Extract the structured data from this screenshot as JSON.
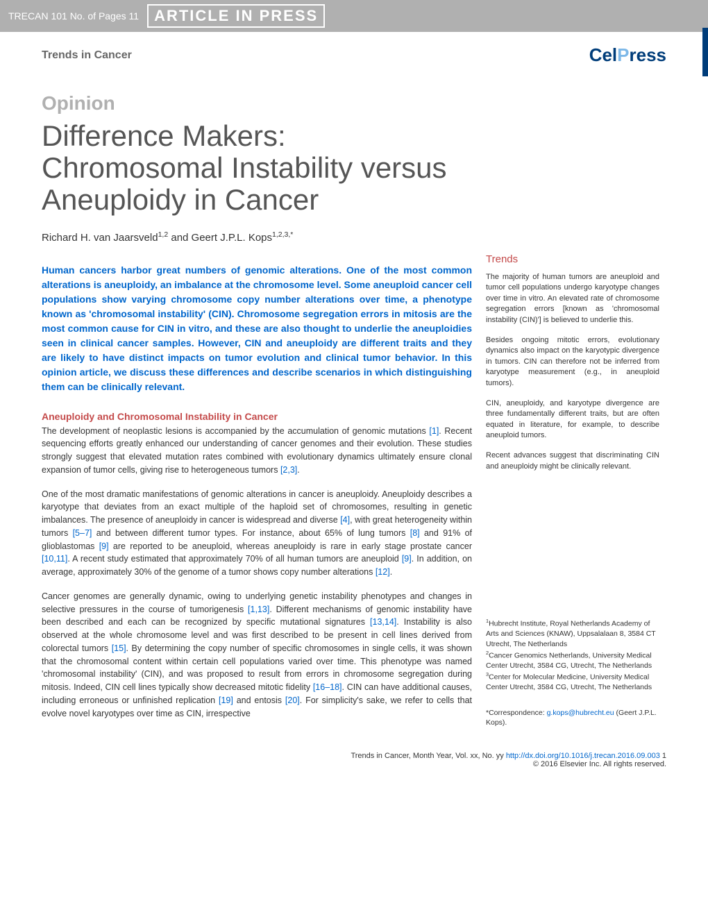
{
  "header": {
    "doc_info": "TRECAN 101 No. of Pages 11",
    "watermark": "ARTICLE IN PRESS"
  },
  "journal": {
    "name": "Trends in Cancer",
    "publisher_cel": "Cel",
    "publisher_p": "P",
    "publisher_ress": "ress"
  },
  "article": {
    "label": "Opinion",
    "title": "Difference Makers: Chromosomal Instability versus Aneuploidy in Cancer",
    "authors": "Richard H. van Jaarsveld",
    "authors_sup1": "1,2",
    "authors_and": " and Geert J.P.L. Kops",
    "authors_sup2": "1,2,3,*"
  },
  "abstract": "Human cancers harbor great numbers of genomic alterations. One of the most common alterations is aneuploidy, an imbalance at the chromosome level. Some aneuploid cancer cell populations show varying chromosome copy number alterations over time, a phenotype known as 'chromosomal instability' (CIN). Chromosome segregation errors in mitosis are the most common cause for CIN in vitro, and these are also thought to underlie the aneuploidies seen in clinical cancer samples. However, CIN and aneuploidy are different traits and they are likely to have distinct impacts on tumor evolution and clinical tumor behavior. In this opinion article, we discuss these differences and describe scenarios in which distinguishing them can be clinically relevant.",
  "section1": {
    "title": "Aneuploidy and Chromosomal Instability in Cancer"
  },
  "para1": {
    "t1": "The development of neoplastic lesions is accompanied by the accumulation of genomic mutations ",
    "c1": "[1]",
    "t2": ". Recent sequencing efforts greatly enhanced our understanding of cancer genomes and their evolution. These studies strongly suggest that elevated mutation rates combined with evolutionary dynamics ultimately ensure clonal expansion of tumor cells, giving rise to heterogeneous tumors ",
    "c2": "[2,3]",
    "t3": "."
  },
  "para2": {
    "t1": "One of the most dramatic manifestations of genomic alterations in cancer is aneuploidy. Aneuploidy describes a karyotype that deviates from an exact multiple of the haploid set of chromosomes, resulting in genetic imbalances. The presence of aneuploidy in cancer is widespread and diverse ",
    "c1": "[4]",
    "t2": ", with great heterogeneity within tumors ",
    "c2": "[5–7]",
    "t3": " and between different tumor types. For instance, about 65% of lung tumors ",
    "c3": "[8]",
    "t4": " and 91% of glioblastomas ",
    "c4": "[9]",
    "t5": " are reported to be aneuploid, whereas aneuploidy is rare in early stage prostate cancer ",
    "c5": "[10,11]",
    "t6": ". A recent study estimated that approximately 70% of all human tumors are aneuploid ",
    "c6": "[9]",
    "t7": ". In addition, on average, approximately 30% of the genome of a tumor shows copy number alterations ",
    "c7": "[12]",
    "t8": "."
  },
  "para3": {
    "t1": "Cancer genomes are generally dynamic, owing to underlying genetic instability phenotypes and changes in selective pressures in the course of tumorigenesis ",
    "c1": "[1,13]",
    "t2": ". Different mechanisms of genomic instability have been described and each can be recognized by specific mutational signatures ",
    "c2": "[13,14]",
    "t3": ". Instability is also observed at the whole chromosome level and was first described to be present in cell lines derived from colorectal tumors ",
    "c3": "[15]",
    "t4": ". By determining the copy number of specific chromosomes in single cells, it was shown that the chromosomal content within certain cell populations varied over time. This phenotype was named 'chromosomal instability' (CIN), and was proposed to result from errors in chromosome segregation during mitosis. Indeed, CIN cell lines typically show decreased mitotic fidelity ",
    "c4": "[16–18]",
    "t5": ". CIN can have additional causes, including erroneous or unfinished replication ",
    "c5": "[19]",
    "t6": " and entosis ",
    "c6": "[20]",
    "t7": ". For simplicity's sake, we refer to cells that evolve novel karyotypes over time as CIN, irrespective"
  },
  "trends": {
    "title": "Trends",
    "p1": "The majority of human tumors are aneuploid and tumor cell populations undergo karyotype changes over time in vitro. An elevated rate of chromosome segregation errors [known as 'chromosomal instability (CIN)'] is believed to underlie this.",
    "p2": "Besides ongoing mitotic errors, evolutionary dynamics also impact on the karyotypic divergence in tumors. CIN can therefore not be inferred from karyotype measurement (e.g., in aneuploid tumors).",
    "p3": "CIN, aneuploidy, and karyotype divergence are three fundamentally different traits, but are often equated in literature, for example, to describe aneuploid tumors.",
    "p4": "Recent advances suggest that discriminating CIN and aneuploidy might be clinically relevant."
  },
  "affiliations": {
    "a1_sup": "1",
    "a1": "Hubrecht Institute, Royal Netherlands Academy of Arts and Sciences (KNAW), Uppsalalaan 8, 3584 CT Utrecht, The Netherlands",
    "a2_sup": "2",
    "a2": "Cancer Genomics Netherlands, University Medical Center Utrecht, 3584 CG, Utrecht, The Netherlands",
    "a3_sup": "3",
    "a3": "Center for Molecular Medicine, University Medical Center Utrecht, 3584 CG, Utrecht, The Netherlands"
  },
  "correspondence": {
    "label": "*Correspondence: ",
    "email": "g.kops@hubrecht.eu",
    "name": " (Geert J.P.L. Kops)."
  },
  "footer": {
    "citation": "Trends in Cancer, Month Year, Vol. xx, No. yy   ",
    "doi": "http://dx.doi.org/10.1016/j.trecan.2016.09.003",
    "page": "   1",
    "copyright": "© 2016 Elsevier Inc. All rights reserved."
  }
}
